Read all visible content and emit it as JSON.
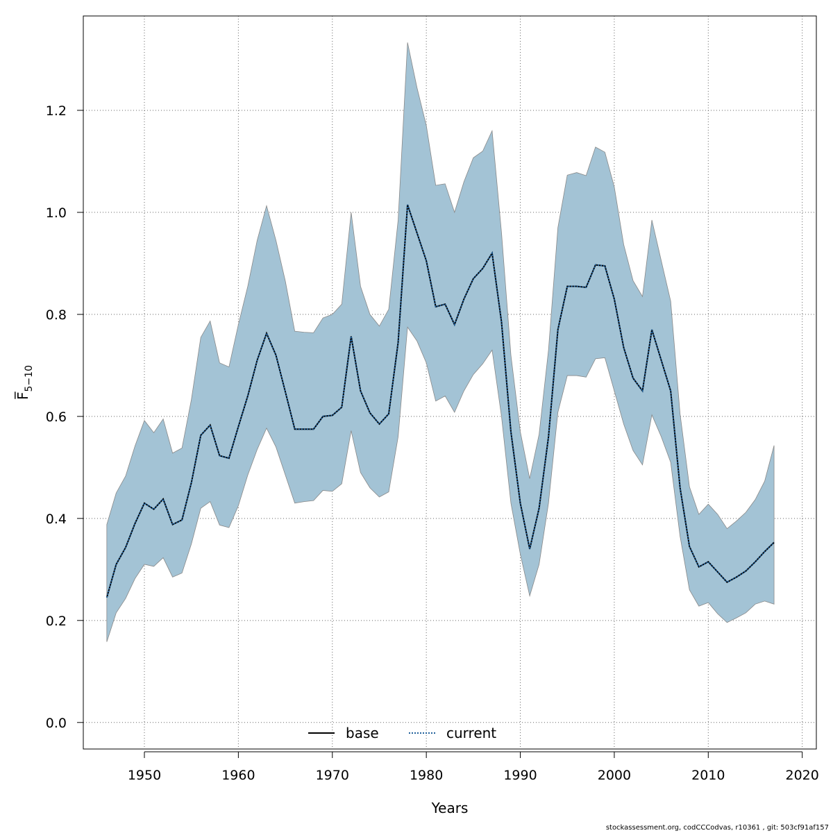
{
  "chart_data": {
    "type": "line",
    "xlabel": "Years",
    "ylabel": "F̅",
    "ylabel_subscript": "5−10",
    "xlim": [
      1943.5,
      2021.5
    ],
    "ylim": [
      -0.052,
      1.385
    ],
    "x_ticks": [
      1950,
      1960,
      1970,
      1980,
      1990,
      2000,
      2010,
      2020
    ],
    "y_ticks": [
      0.0,
      0.2,
      0.4,
      0.6,
      0.8,
      1.0,
      1.2
    ],
    "y_tick_labels": [
      "0.0",
      "0.2",
      "0.4",
      "0.6",
      "0.8",
      "1.0",
      "1.2"
    ],
    "grid": true,
    "legend_placement": "bottom-center",
    "series": [
      {
        "name": "base",
        "line_style": "solid",
        "color": "#000000",
        "x": [
          1946,
          1947,
          1948,
          1949,
          1950,
          1951,
          1952,
          1953,
          1954,
          1955,
          1956,
          1957,
          1958,
          1959,
          1960,
          1961,
          1962,
          1963,
          1964,
          1965,
          1966,
          1967,
          1968,
          1969,
          1970,
          1971,
          1972,
          1973,
          1974,
          1975,
          1976,
          1977,
          1978,
          1979,
          1980,
          1981,
          1982,
          1983,
          1984,
          1985,
          1986,
          1987,
          1988,
          1989,
          1990,
          1991,
          1992,
          1993,
          1994,
          1995,
          1996,
          1997,
          1998,
          1999,
          2000,
          2001,
          2002,
          2003,
          2004,
          2005,
          2006,
          2007,
          2008,
          2009,
          2010,
          2011,
          2012,
          2013,
          2014,
          2015,
          2016,
          2017
        ],
        "y": [
          0.245,
          0.31,
          0.343,
          0.39,
          0.43,
          0.418,
          0.438,
          0.388,
          0.397,
          0.47,
          0.563,
          0.583,
          0.523,
          0.518,
          0.58,
          0.64,
          0.71,
          0.763,
          0.72,
          0.648,
          0.575,
          0.575,
          0.575,
          0.6,
          0.602,
          0.618,
          0.757,
          0.65,
          0.607,
          0.585,
          0.605,
          0.745,
          1.015,
          0.96,
          0.905,
          0.815,
          0.82,
          0.78,
          0.83,
          0.87,
          0.89,
          0.92,
          0.785,
          0.57,
          0.43,
          0.34,
          0.42,
          0.56,
          0.77,
          0.855,
          0.855,
          0.853,
          0.897,
          0.895,
          0.83,
          0.735,
          0.675,
          0.65,
          0.77,
          0.71,
          0.65,
          0.46,
          0.345,
          0.305,
          0.315,
          0.295,
          0.275,
          0.285,
          0.297,
          0.315,
          0.335,
          0.353
        ]
      },
      {
        "name": "current",
        "line_style": "dotted",
        "color": "#1f5f9a",
        "x": [
          1946,
          1947,
          1948,
          1949,
          1950,
          1951,
          1952,
          1953,
          1954,
          1955,
          1956,
          1957,
          1958,
          1959,
          1960,
          1961,
          1962,
          1963,
          1964,
          1965,
          1966,
          1967,
          1968,
          1969,
          1970,
          1971,
          1972,
          1973,
          1974,
          1975,
          1976,
          1977,
          1978,
          1979,
          1980,
          1981,
          1982,
          1983,
          1984,
          1985,
          1986,
          1987,
          1988,
          1989,
          1990,
          1991,
          1992,
          1993,
          1994,
          1995,
          1996,
          1997,
          1998,
          1999,
          2000,
          2001,
          2002,
          2003,
          2004,
          2005,
          2006,
          2007,
          2008,
          2009,
          2010,
          2011,
          2012,
          2013,
          2014,
          2015,
          2016,
          2017
        ],
        "y": [
          0.245,
          0.31,
          0.343,
          0.39,
          0.43,
          0.418,
          0.438,
          0.388,
          0.397,
          0.47,
          0.563,
          0.583,
          0.523,
          0.518,
          0.58,
          0.64,
          0.71,
          0.763,
          0.72,
          0.648,
          0.575,
          0.575,
          0.575,
          0.6,
          0.602,
          0.618,
          0.757,
          0.65,
          0.607,
          0.585,
          0.605,
          0.745,
          1.015,
          0.96,
          0.905,
          0.815,
          0.82,
          0.78,
          0.83,
          0.87,
          0.89,
          0.92,
          0.785,
          0.57,
          0.43,
          0.34,
          0.42,
          0.56,
          0.77,
          0.855,
          0.855,
          0.853,
          0.897,
          0.895,
          0.83,
          0.735,
          0.675,
          0.65,
          0.77,
          0.71,
          0.65,
          0.46,
          0.345,
          0.305,
          0.315,
          0.295,
          0.275,
          0.285,
          0.297,
          0.315,
          0.335,
          0.353
        ]
      }
    ],
    "confidence_band": {
      "fill": "#a3c3d5",
      "edge": "#888888",
      "x": [
        1946,
        1947,
        1948,
        1949,
        1950,
        1951,
        1952,
        1953,
        1954,
        1955,
        1956,
        1957,
        1958,
        1959,
        1960,
        1961,
        1962,
        1963,
        1964,
        1965,
        1966,
        1967,
        1968,
        1969,
        1970,
        1971,
        1972,
        1973,
        1974,
        1975,
        1976,
        1977,
        1978,
        1979,
        1980,
        1981,
        1982,
        1983,
        1984,
        1985,
        1986,
        1987,
        1988,
        1989,
        1990,
        1991,
        1992,
        1993,
        1994,
        1995,
        1996,
        1997,
        1998,
        1999,
        2000,
        2001,
        2002,
        2003,
        2004,
        2005,
        2006,
        2007,
        2008,
        2009,
        2010,
        2011,
        2012,
        2013,
        2014,
        2015,
        2016,
        2017
      ],
      "lower": [
        0.158,
        0.215,
        0.243,
        0.282,
        0.31,
        0.306,
        0.323,
        0.285,
        0.293,
        0.35,
        0.42,
        0.433,
        0.387,
        0.382,
        0.425,
        0.485,
        0.535,
        0.577,
        0.54,
        0.485,
        0.43,
        0.433,
        0.435,
        0.455,
        0.453,
        0.468,
        0.572,
        0.49,
        0.46,
        0.442,
        0.452,
        0.56,
        0.775,
        0.748,
        0.705,
        0.63,
        0.64,
        0.608,
        0.65,
        0.682,
        0.703,
        0.73,
        0.6,
        0.43,
        0.33,
        0.248,
        0.31,
        0.43,
        0.608,
        0.68,
        0.68,
        0.677,
        0.713,
        0.715,
        0.65,
        0.585,
        0.533,
        0.505,
        0.603,
        0.56,
        0.51,
        0.365,
        0.26,
        0.228,
        0.235,
        0.213,
        0.196,
        0.205,
        0.215,
        0.232,
        0.238,
        0.232
      ],
      "upper": [
        0.388,
        0.45,
        0.483,
        0.542,
        0.592,
        0.568,
        0.595,
        0.528,
        0.538,
        0.633,
        0.755,
        0.787,
        0.705,
        0.697,
        0.78,
        0.855,
        0.945,
        1.013,
        0.945,
        0.865,
        0.767,
        0.765,
        0.764,
        0.793,
        0.8,
        0.82,
        1.0,
        0.855,
        0.8,
        0.777,
        0.81,
        0.985,
        1.333,
        1.245,
        1.17,
        1.053,
        1.056,
        1.0,
        1.06,
        1.107,
        1.12,
        1.16,
        0.96,
        0.72,
        0.57,
        0.478,
        0.565,
        0.73,
        0.97,
        1.073,
        1.078,
        1.072,
        1.128,
        1.118,
        1.05,
        0.937,
        0.866,
        0.835,
        0.985,
        0.905,
        0.826,
        0.605,
        0.462,
        0.408,
        0.428,
        0.408,
        0.38,
        0.395,
        0.412,
        0.437,
        0.473,
        0.543
      ]
    }
  },
  "legend": {
    "items": [
      {
        "label": "base",
        "line_style": "solid",
        "color": "#000000"
      },
      {
        "label": "current",
        "line_style": "dotted",
        "color": "#1f5f9a"
      }
    ]
  },
  "footer": {
    "text": "stockassessment.org, codCCCodvas, r10361 , git: 503cf91af157"
  }
}
